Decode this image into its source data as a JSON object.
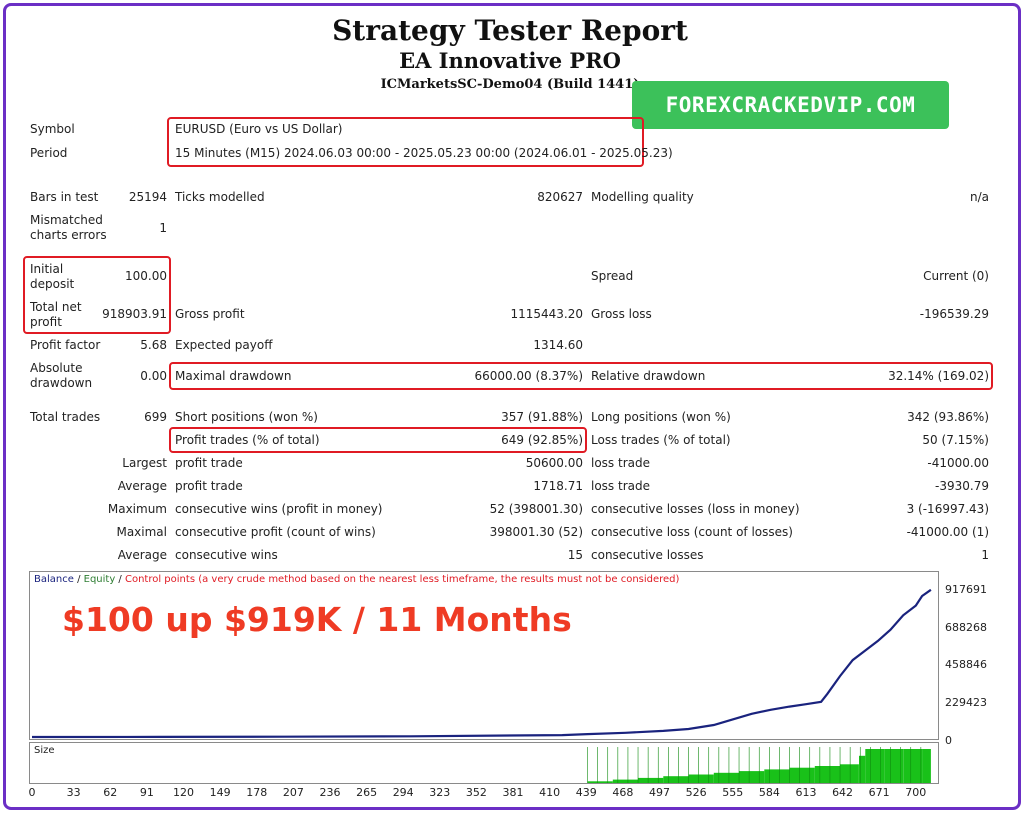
{
  "report": {
    "title": "Strategy Tester Report",
    "ea_name": "EA Innovative PRO",
    "server": "ICMarketsSC-Demo04 (Build 1441)"
  },
  "watermark": "FOREXCRACKEDVIP.COM",
  "info": {
    "symbol_label": "Symbol",
    "symbol_value": "EURUSD (Euro vs US Dollar)",
    "period_label": "Period",
    "period_value": "15 Minutes (M15) 2024.06.03 00:00 - 2025.05.23 00:00 (2024.06.01 - 2025.05.23)"
  },
  "stats": {
    "bars_label": "Bars in test",
    "bars_value": "25194",
    "ticks_label": "Ticks modelled",
    "ticks_value": "820627",
    "quality_label": "Modelling quality",
    "quality_value": "n/a",
    "mismatch_label_1": "Mismatched",
    "mismatch_label_2": "charts errors",
    "mismatch_value": "1",
    "deposit_label_1": "Initial",
    "deposit_label_2": "deposit",
    "deposit_value": "100.00",
    "spread_label": "Spread",
    "spread_value": "Current (0)",
    "netprofit_label_1": "Total net",
    "netprofit_label_2": "profit",
    "netprofit_value": "918903.91",
    "grossprofit_label": "Gross profit",
    "grossprofit_value": "1115443.20",
    "grossloss_label": "Gross loss",
    "grossloss_value": "-196539.29",
    "pf_label": "Profit factor",
    "pf_value": "5.68",
    "payoff_label": "Expected payoff",
    "payoff_value": "1314.60",
    "absdd_label_1": "Absolute",
    "absdd_label_2": "drawdown",
    "absdd_value": "0.00",
    "maxdd_label": "Maximal drawdown",
    "maxdd_value": "66000.00 (8.37%)",
    "reldd_label": "Relative drawdown",
    "reldd_value": "32.14% (169.02)",
    "trades_label": "Total trades",
    "trades_value": "699",
    "short_label": "Short positions (won %)",
    "short_value": "357 (91.88%)",
    "long_label": "Long positions (won %)",
    "long_value": "342 (93.86%)",
    "profit_trades_label": "Profit trades (% of total)",
    "profit_trades_value": "649 (92.85%)",
    "loss_trades_label": "Loss trades (% of total)",
    "loss_trades_value": "50 (7.15%)",
    "largest_label": "Largest",
    "largest_profit_label": "profit trade",
    "largest_profit_value": "50600.00",
    "largest_loss_label": "loss trade",
    "largest_loss_value": "-41000.00",
    "average_label": "Average",
    "average_profit_label": "profit trade",
    "average_profit_value": "1718.71",
    "average_loss_label": "loss trade",
    "average_loss_value": "-3930.79",
    "maximum_label": "Maximum",
    "max_wins_label": "consecutive wins (profit in money)",
    "max_wins_value": "52 (398001.30)",
    "max_losses_label": "consecutive losses (loss in money)",
    "max_losses_value": "3 (-16997.43)",
    "maximal_label": "Maximal",
    "maximal_profit_label": "consecutive profit (count of wins)",
    "maximal_profit_value": "398001.30 (52)",
    "maximal_loss_label": "consecutive loss (count of losses)",
    "maximal_loss_value": "-41000.00 (1)",
    "avg_consec_label": "Average",
    "avg_consec_wins_label": "consecutive wins",
    "avg_consec_wins_value": "15",
    "avg_consec_losses_label": "consecutive losses",
    "avg_consec_losses_value": "1"
  },
  "chart": {
    "legend_balance": "Balance",
    "legend_sep1": " / ",
    "legend_equity": "Equity",
    "legend_sep2": " / ",
    "legend_control": "Control points (a very crude method based on the nearest less timeframe, the results must not be considered)",
    "overlay_text": "$100 up $919K / 11 Months",
    "size_label": "Size",
    "colors": {
      "balance": "#1a237e",
      "equity": "#2e7d32",
      "control": "#e01b24",
      "size_bars": "#19c119"
    }
  },
  "chart_data": {
    "type": "line",
    "yticks": [
      "917691",
      "688268",
      "458846",
      "229423",
      "0"
    ],
    "xticks": [
      "0",
      "33",
      "62",
      "91",
      "120",
      "149",
      "178",
      "207",
      "236",
      "265",
      "294",
      "323",
      "352",
      "381",
      "410",
      "439",
      "468",
      "497",
      "526",
      "555",
      "584",
      "613",
      "642",
      "671",
      "700"
    ],
    "ylim": [
      0,
      917691
    ],
    "xlim": [
      0,
      716
    ],
    "series": [
      {
        "name": "Balance",
        "x": [
          0,
          100,
          200,
          300,
          420,
          440,
          470,
          500,
          520,
          540,
          555,
          570,
          585,
          600,
          613,
          625,
          630,
          640,
          650,
          660,
          670,
          680,
          690,
          700,
          705,
          712
        ],
        "values": [
          100,
          400,
          1800,
          4500,
          12000,
          18000,
          26000,
          38000,
          50000,
          75000,
          110000,
          145000,
          170000,
          190000,
          205000,
          220000,
          270000,
          380000,
          480000,
          540000,
          600000,
          670000,
          760000,
          820000,
          880000,
          918903
        ]
      }
    ],
    "size": {
      "x": [
        440,
        460,
        480,
        500,
        520,
        540,
        560,
        580,
        600,
        620,
        640,
        655,
        660,
        675,
        690,
        705,
        712
      ],
      "values": [
        0.05,
        0.1,
        0.15,
        0.2,
        0.25,
        0.3,
        0.35,
        0.4,
        0.45,
        0.5,
        0.55,
        0.8,
        1.0,
        1.0,
        1.0,
        1.0,
        1.0
      ]
    }
  }
}
